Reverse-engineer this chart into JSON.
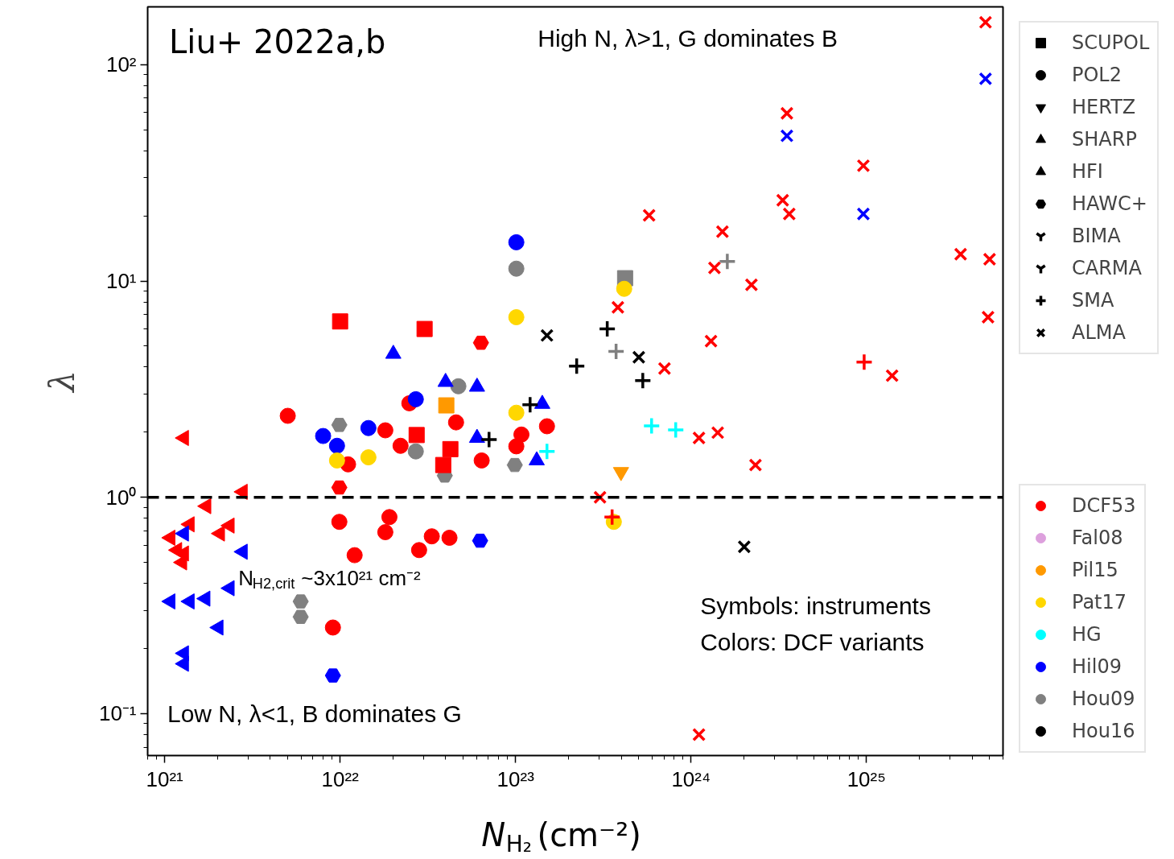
{
  "chart_data": {
    "type": "scatter",
    "xlabel": "N$_{H₂}$ (cm⁻²)",
    "ylabel": "λ",
    "log": "xy",
    "xlim": [
      8e+20,
      6e+25
    ],
    "ylim": [
      0.064,
      185
    ],
    "xticks": [
      {
        "value": 1e+21,
        "label": "10²¹"
      },
      {
        "value": 1e+22,
        "label": "10²²"
      },
      {
        "value": 1e+23,
        "label": "10²³"
      },
      {
        "value": 1e+24,
        "label": "10²⁴"
      },
      {
        "value": 1e+25,
        "label": "10²⁵"
      }
    ],
    "yticks": [
      {
        "value": 0.1,
        "label": "10⁻¹"
      },
      {
        "value": 1,
        "label": "10⁰"
      },
      {
        "value": 10,
        "label": "10¹"
      },
      {
        "value": 100,
        "label": "10²"
      }
    ],
    "ref_lines": [
      {
        "axis": "y",
        "value": 1,
        "color": "#000000",
        "line_style": "dashed"
      }
    ],
    "annotations": [
      "Liu+ 2022a,b",
      "High N, λ>1, G dominates B",
      "N$_{H2,crit}$~3x10²¹ cm⁻²",
      "Symbols: instruments",
      "Colors: DCF variants",
      "Low N, λ<1, B dominates G"
    ],
    "legend": "right",
    "series": [
      {
        "marker": "triangle_left",
        "color": "#ff0000",
        "x": [
          1.29e+21,
          2.79e+21,
          1.73e+21,
          1.39e+21,
          1.08e+21,
          1.18e+21,
          1.29e+21,
          1.26e+21,
          2.07e+21,
          2.35e+21
        ],
        "values": [
          1.88,
          1.06,
          0.91,
          0.75,
          0.65,
          0.57,
          0.55,
          0.5,
          0.68,
          0.74
        ]
      },
      {
        "marker": "triangle_left",
        "color": "#0000ff",
        "x": [
          1.29e+21,
          2.79e+21,
          2.35e+21,
          1.08e+21,
          1.39e+21,
          1.71e+21,
          2.03e+21,
          1.29e+21,
          1.29e+21
        ],
        "values": [
          0.68,
          0.56,
          0.38,
          0.33,
          0.33,
          0.34,
          0.25,
          0.19,
          0.17
        ]
      },
      {
        "color": "#ff0000",
        "x": [
          9.9e+21,
          6.35e+22
        ],
        "values": [
          1.11,
          5.18
        ]
      },
      {
        "color": "#808080",
        "x": [
          9.9e+21,
          3.95e+22,
          9.9e+22,
          5.96e+21,
          5.96e+21
        ],
        "values": [
          2.16,
          1.26,
          1.41,
          0.33,
          0.28
        ]
      },
      {
        "color": "#0000ff",
        "x": [
          9.1e+21,
          6.28e+22
        ],
        "values": [
          0.15,
          0.63
        ]
      },
      {
        "marker": "square",
        "color": "#ff0000",
        "x": [
          1e+22,
          3.03e+22,
          2.73e+22,
          3.87e+22,
          4.25e+22
        ],
        "values": [
          6.5,
          6.0,
          1.94,
          1.41,
          1.67
        ]
      },
      {
        "marker": "square",
        "color": "#ff9900",
        "x": [
          4.03e+22
        ],
        "values": [
          2.66
        ]
      },
      {
        "marker": "square",
        "color": "#808080",
        "x": [
          4.21e+23
        ],
        "values": [
          10.3
        ]
      },
      {
        "marker": "circle",
        "color": "#ff0000",
        "x": [
          5.03e+21,
          1.11e+22,
          2.48e+22,
          1.81e+22,
          2.21e+22,
          4.58e+22,
          6.41e+22,
          1.08e+23,
          1.01e+23,
          1.51e+23,
          9.9e+21,
          1.21e+22,
          1.91e+22,
          1.81e+22,
          2.82e+22,
          3.33e+22,
          4.2e+22,
          9.1e+21
        ],
        "values": [
          2.38,
          1.42,
          2.72,
          2.04,
          1.73,
          2.22,
          1.48,
          1.95,
          1.72,
          2.13,
          0.77,
          0.54,
          0.81,
          0.69,
          0.57,
          0.66,
          0.65,
          0.25
        ]
      },
      {
        "marker": "circle",
        "color": "#0000ff",
        "x": [
          8e+21,
          9.6e+21,
          1.45e+22,
          2.7e+22,
          1.01e+23
        ],
        "values": [
          1.92,
          1.73,
          2.09,
          2.84,
          15.1
        ]
      },
      {
        "marker": "circle",
        "color": "#808080",
        "x": [
          1.01e+23,
          4.72e+22,
          2.7e+22
        ],
        "values": [
          11.4,
          3.26,
          1.63
        ]
      },
      {
        "marker": "circle",
        "color": "#ffd700",
        "x": [
          9.6e+21,
          1.45e+22,
          1.01e+23,
          1.01e+23,
          4.16e+23,
          3.63e+23
        ],
        "values": [
          1.48,
          1.53,
          6.8,
          2.46,
          9.2,
          0.77
        ]
      },
      {
        "marker": "triangle_down",
        "color": "#ff9900",
        "x": [
          3.99e+23
        ],
        "values": [
          1.31
        ]
      },
      {
        "marker": "triangle",
        "color": "#0000ff",
        "x": [
          2.01e+22,
          3.99e+22,
          6.03e+22,
          6.03e+22,
          1.42e+23,
          1.32e+23
        ],
        "values": [
          4.6,
          3.41,
          3.24,
          1.88,
          2.7,
          1.48
        ]
      },
      {
        "marker": "plus",
        "color": "#000000",
        "x": [
          7.06e+22,
          1.21e+23,
          2.23e+23,
          3.33e+23,
          5.31e+23
        ],
        "values": [
          1.85,
          2.68,
          4.04,
          6.0,
          3.46
        ]
      },
      {
        "marker": "plus",
        "color": "#808080",
        "x": [
          3.74e+23,
          1.61e+24
        ],
        "values": [
          4.72,
          12.3
        ]
      },
      {
        "marker": "plus",
        "color": "#00ffff",
        "x": [
          1.51e+23,
          5.96e+23,
          8.18e+23
        ],
        "values": [
          1.63,
          2.14,
          2.05
        ]
      },
      {
        "marker": "plus",
        "color": "#ff0000",
        "x": [
          3.55e+23,
          9.7e+24
        ],
        "values": [
          0.81,
          4.22
        ]
      },
      {
        "marker": "x",
        "color": "#000000",
        "x": [
          1.51e+23,
          5.04e+23,
          2.01e+24
        ],
        "values": [
          5.6,
          4.44,
          0.59
        ]
      },
      {
        "marker": "x",
        "color": "#ff0000",
        "x": [
          4.77e+25,
          3.52e+24,
          3.33e+24,
          3.63e+24,
          9.6e+24,
          5.77e+23,
          1.51e+24,
          1.36e+24,
          2.21e+24,
          3.83e+23,
          1.3e+24,
          7.06e+23,
          1.11e+24,
          1.42e+24,
          2.33e+24,
          3.03e+23,
          1.11e+24,
          3.44e+25,
          5.03e+25,
          4.93e+25,
          1.4e+25
        ],
        "values": [
          157,
          59.6,
          23.6,
          20.4,
          34.1,
          20.1,
          16.9,
          11.5,
          9.6,
          7.55,
          5.27,
          3.94,
          1.88,
          1.99,
          1.41,
          1.0,
          0.08,
          13.3,
          12.6,
          6.8,
          3.65
        ]
      },
      {
        "marker": "x",
        "color": "#0000ff",
        "x": [
          4.77e+25,
          3.52e+24,
          9.6e+24
        ],
        "values": [
          86,
          46.9,
          20.4
        ]
      },
      {
        "name": "SCUPOL",
        "marker": "square",
        "color": "#000000"
      },
      {
        "name": "POL2",
        "marker": "circle",
        "color": "#000000"
      },
      {
        "name": "HERTZ",
        "marker": "triangle_down",
        "color": "#000000"
      },
      {
        "name": "SHARP",
        "marker": "triangle",
        "color": "#000000"
      },
      {
        "name": "HFI",
        "marker": "triangle_left",
        "color": "#000000"
      },
      {
        "name": "HAWC+",
        "color": "#000000"
      },
      {
        "name": "BIMA",
        "marker": "tri_left",
        "color": "#000000"
      },
      {
        "name": "CARMA",
        "marker": "tri_right",
        "color": "#000000"
      },
      {
        "name": "SMA",
        "marker": "plus",
        "color": "#000000"
      },
      {
        "name": "ALMA",
        "marker": "x",
        "color": "#000000"
      },
      {
        "name": "DCF53",
        "marker": "circle",
        "color": "#ff0000"
      },
      {
        "name": "Fal08",
        "marker": "circle",
        "color": "#dda0dd"
      },
      {
        "name": "Pil15",
        "marker": "circle",
        "color": "#ff9900"
      },
      {
        "name": "Pat17",
        "marker": "circle",
        "color": "#ffd700"
      },
      {
        "name": "HG",
        "marker": "circle",
        "color": "#00ffff"
      },
      {
        "name": "Hil09",
        "marker": "circle",
        "color": "#0000ff"
      },
      {
        "name": "Hou09",
        "marker": "circle",
        "color": "#808080"
      },
      {
        "name": "Hou16",
        "marker": "circle",
        "color": "#000000"
      }
    ]
  }
}
